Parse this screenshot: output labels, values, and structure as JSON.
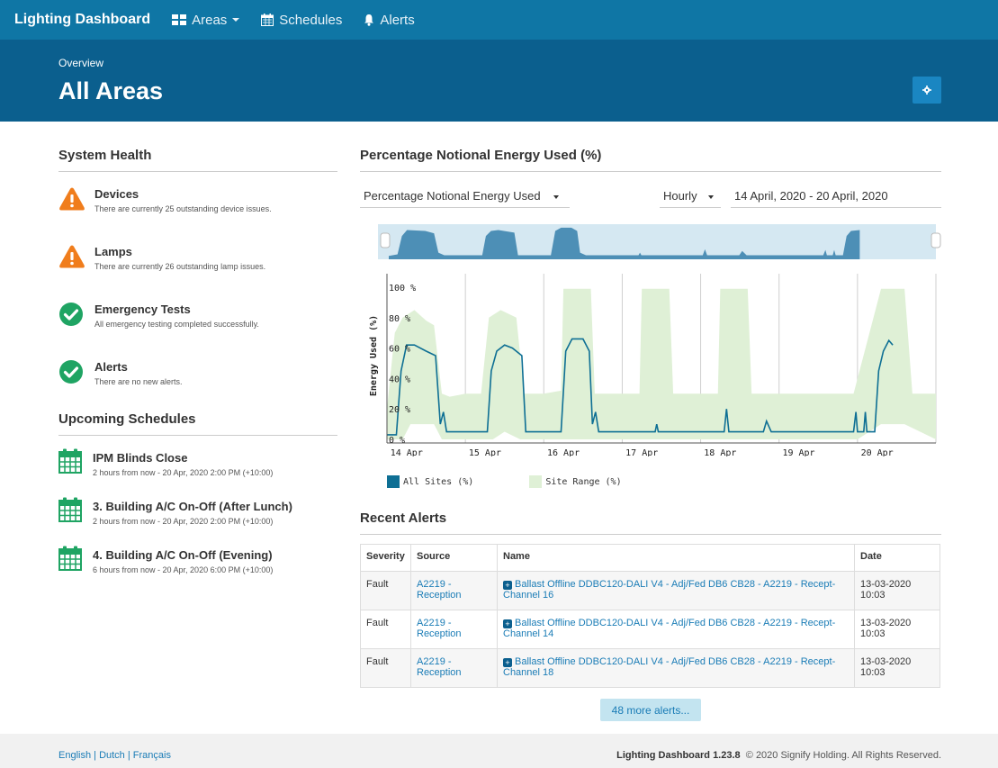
{
  "nav": {
    "brand": "Lighting Dashboard",
    "items": [
      {
        "label": "Areas",
        "icon": "grid-icon",
        "dropdown": true
      },
      {
        "label": "Schedules",
        "icon": "calendar-icon",
        "dropdown": false
      },
      {
        "label": "Alerts",
        "icon": "bell-icon",
        "dropdown": false
      }
    ]
  },
  "header": {
    "breadcrumb": "Overview",
    "title": "All Areas",
    "settings_icon": "gear-icon"
  },
  "health": {
    "title": "System Health",
    "items": [
      {
        "title": "Devices",
        "desc": "There are currently 25 outstanding device issues.",
        "status": "warning"
      },
      {
        "title": "Lamps",
        "desc": "There are currently 26 outstanding lamp issues.",
        "status": "warning"
      },
      {
        "title": "Emergency Tests",
        "desc": "All emergency testing completed successfully.",
        "status": "ok"
      },
      {
        "title": "Alerts",
        "desc": "There are no new alerts.",
        "status": "ok"
      }
    ]
  },
  "schedules": {
    "title": "Upcoming Schedules",
    "items": [
      {
        "title": "IPM Blinds Close",
        "desc": "2 hours from now - 20 Apr, 2020 2:00 PM (+10:00)"
      },
      {
        "title": "3. Building A/C On-Off (After Lunch)",
        "desc": "2 hours from now - 20 Apr, 2020 2:00 PM (+10:00)"
      },
      {
        "title": "4. Building A/C On-Off (Evening)",
        "desc": "6 hours from now - 20 Apr, 2020 6:00 PM (+10:00)"
      }
    ]
  },
  "energy": {
    "title": "Percentage Notional Energy Used (%)",
    "metric_select": "Percentage Notional Energy Used",
    "interval_select": "Hourly",
    "date_range": "14 April, 2020 - 20 April, 2020"
  },
  "chart_data": {
    "type": "line",
    "ylabel": "Energy Used (%)",
    "xlabel": "",
    "ylim": [
      0,
      100
    ],
    "yticks": [
      "0 %",
      "20 %",
      "40 %",
      "60 %",
      "80 %",
      "100 %"
    ],
    "ytick_values": [
      0,
      20,
      40,
      60,
      80,
      100
    ],
    "x_range": [
      0,
      7
    ],
    "xticks": [
      "14 Apr",
      "15 Apr",
      "16 Apr",
      "17 Apr",
      "18 Apr",
      "19 Apr",
      "20 Apr"
    ],
    "xtick_values": [
      0.25,
      1.25,
      2.25,
      3.25,
      4.25,
      5.25,
      6.25
    ],
    "series": [
      {
        "name": "All Sites (%)",
        "color": "#0e6f94",
        "kind": "line",
        "points": [
          [
            0.0,
            3
          ],
          [
            0.12,
            3
          ],
          [
            0.18,
            45
          ],
          [
            0.25,
            62
          ],
          [
            0.35,
            62
          ],
          [
            0.5,
            58
          ],
          [
            0.62,
            55
          ],
          [
            0.68,
            10
          ],
          [
            0.72,
            18
          ],
          [
            0.76,
            5
          ],
          [
            1.0,
            5
          ],
          [
            1.28,
            5
          ],
          [
            1.33,
            45
          ],
          [
            1.4,
            58
          ],
          [
            1.5,
            62
          ],
          [
            1.6,
            60
          ],
          [
            1.72,
            55
          ],
          [
            1.77,
            5
          ],
          [
            2.0,
            5
          ],
          [
            2.22,
            5
          ],
          [
            2.28,
            58
          ],
          [
            2.36,
            66
          ],
          [
            2.5,
            66
          ],
          [
            2.58,
            58
          ],
          [
            2.62,
            10
          ],
          [
            2.66,
            18
          ],
          [
            2.7,
            5
          ],
          [
            3.0,
            5
          ],
          [
            3.42,
            5
          ],
          [
            3.44,
            10
          ],
          [
            3.46,
            5
          ],
          [
            4.0,
            5
          ],
          [
            4.3,
            5
          ],
          [
            4.33,
            20
          ],
          [
            4.36,
            5
          ],
          [
            4.8,
            5
          ],
          [
            4.84,
            12
          ],
          [
            4.9,
            5
          ],
          [
            5.0,
            5
          ],
          [
            5.95,
            5
          ],
          [
            5.98,
            18
          ],
          [
            6.0,
            5
          ],
          [
            6.08,
            5
          ],
          [
            6.1,
            18
          ],
          [
            6.12,
            5
          ],
          [
            6.22,
            5
          ],
          [
            6.27,
            45
          ],
          [
            6.33,
            58
          ],
          [
            6.4,
            65
          ],
          [
            6.45,
            62
          ]
        ]
      },
      {
        "name": "Site Range (%)",
        "color": "#dff0d6",
        "kind": "band",
        "upper": [
          [
            0.0,
            20
          ],
          [
            0.1,
            70
          ],
          [
            0.2,
            80
          ],
          [
            0.35,
            85
          ],
          [
            0.5,
            78
          ],
          [
            0.6,
            75
          ],
          [
            0.7,
            30
          ],
          [
            0.8,
            28
          ],
          [
            1.0,
            30
          ],
          [
            1.2,
            30
          ],
          [
            1.3,
            80
          ],
          [
            1.45,
            85
          ],
          [
            1.65,
            80
          ],
          [
            1.75,
            30
          ],
          [
            2.0,
            30
          ],
          [
            2.22,
            32
          ],
          [
            2.25,
            99
          ],
          [
            2.6,
            99
          ],
          [
            2.65,
            30
          ],
          [
            3.0,
            30
          ],
          [
            3.22,
            30
          ],
          [
            3.25,
            99
          ],
          [
            3.6,
            99
          ],
          [
            3.65,
            30
          ],
          [
            4.0,
            30
          ],
          [
            4.22,
            30
          ],
          [
            4.25,
            99
          ],
          [
            4.6,
            99
          ],
          [
            4.65,
            30
          ],
          [
            5.0,
            30
          ],
          [
            5.95,
            30
          ],
          [
            6.3,
            99
          ],
          [
            6.6,
            99
          ],
          [
            6.7,
            30
          ],
          [
            7.0,
            30
          ]
        ],
        "lower": [
          [
            0.0,
            0
          ],
          [
            0.2,
            0
          ],
          [
            0.3,
            10
          ],
          [
            0.6,
            10
          ],
          [
            0.7,
            0
          ],
          [
            1.0,
            0
          ],
          [
            1.35,
            0
          ],
          [
            1.5,
            5
          ],
          [
            1.7,
            0
          ],
          [
            2.5,
            0
          ],
          [
            3.0,
            0
          ],
          [
            6.0,
            0
          ],
          [
            6.3,
            10
          ],
          [
            6.6,
            10
          ],
          [
            7.0,
            0
          ]
        ]
      }
    ],
    "navigator": [
      [
        0.0,
        10
      ],
      [
        0.12,
        15
      ],
      [
        0.18,
        70
      ],
      [
        0.25,
        88
      ],
      [
        0.5,
        85
      ],
      [
        0.62,
        78
      ],
      [
        0.68,
        20
      ],
      [
        0.76,
        12
      ],
      [
        1.28,
        12
      ],
      [
        1.33,
        70
      ],
      [
        1.4,
        85
      ],
      [
        1.5,
        88
      ],
      [
        1.72,
        80
      ],
      [
        1.77,
        12
      ],
      [
        2.22,
        12
      ],
      [
        2.28,
        85
      ],
      [
        2.36,
        95
      ],
      [
        2.5,
        95
      ],
      [
        2.58,
        85
      ],
      [
        2.62,
        20
      ],
      [
        2.7,
        12
      ],
      [
        3.42,
        12
      ],
      [
        3.44,
        20
      ],
      [
        3.46,
        12
      ],
      [
        4.3,
        12
      ],
      [
        4.33,
        30
      ],
      [
        4.36,
        12
      ],
      [
        4.8,
        12
      ],
      [
        4.84,
        25
      ],
      [
        4.9,
        12
      ],
      [
        5.95,
        12
      ],
      [
        5.98,
        28
      ],
      [
        6.0,
        12
      ],
      [
        6.08,
        12
      ],
      [
        6.1,
        28
      ],
      [
        6.12,
        12
      ],
      [
        6.22,
        12
      ],
      [
        6.27,
        70
      ],
      [
        6.33,
        85
      ],
      [
        6.45,
        88
      ],
      [
        6.45,
        0
      ]
    ]
  },
  "alerts": {
    "title": "Recent Alerts",
    "columns": [
      "Severity",
      "Source",
      "Name",
      "Date"
    ],
    "rows": [
      {
        "severity": "Fault",
        "source": "A2219 - Reception",
        "name": "Ballast Offline DDBC120-DALI V4 - Adj/Fed DB6 CB28 - A2219 - Recept-Channel 16",
        "date": "13-03-2020 10:03"
      },
      {
        "severity": "Fault",
        "source": "A2219 - Reception",
        "name": "Ballast Offline DDBC120-DALI V4 - Adj/Fed DB6 CB28 - A2219 - Recept-Channel 14",
        "date": "13-03-2020 10:03"
      },
      {
        "severity": "Fault",
        "source": "A2219 - Reception",
        "name": "Ballast Offline DDBC120-DALI V4 - Adj/Fed DB6 CB28 - A2219 - Recept-Channel 18",
        "date": "13-03-2020 10:03"
      }
    ],
    "more_label": "48 more alerts..."
  },
  "footer": {
    "lang_en": "English",
    "lang_nl": "Dutch",
    "lang_fr": "Français",
    "app_version": "Lighting Dashboard 1.23.8",
    "copyright": "© 2020 Signify Holding. All Rights Reserved."
  }
}
